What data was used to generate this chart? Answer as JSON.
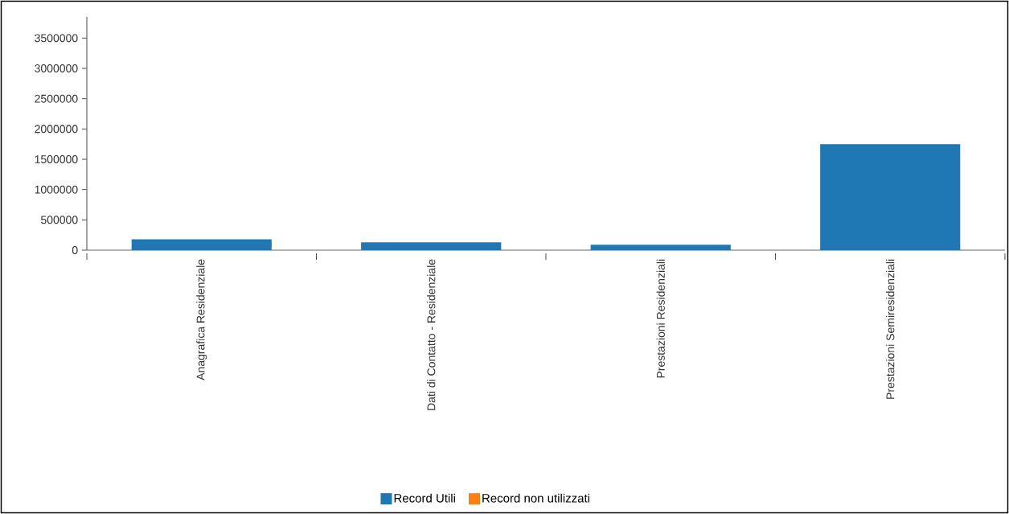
{
  "chart_data": {
    "type": "bar",
    "stacked": true,
    "categories": [
      "Anagrafica Residenziale",
      "Dati di Contatto - Residenziale",
      "Prestazioni Residenziali",
      "Prestazioni Semiresidenziali"
    ],
    "series": [
      {
        "name": "Record Utili",
        "color": "#1f77b4",
        "values": [
          180000,
          130000,
          90000,
          1750000
        ]
      },
      {
        "name": "Record non utilizzati",
        "color": "#ff7f0e",
        "values": [
          0,
          0,
          0,
          0
        ]
      }
    ],
    "ylim": [
      0,
      3850000
    ],
    "yticks": [
      0,
      500000,
      1000000,
      1500000,
      2000000,
      2500000,
      3000000,
      3500000
    ],
    "legend": "bottom"
  }
}
